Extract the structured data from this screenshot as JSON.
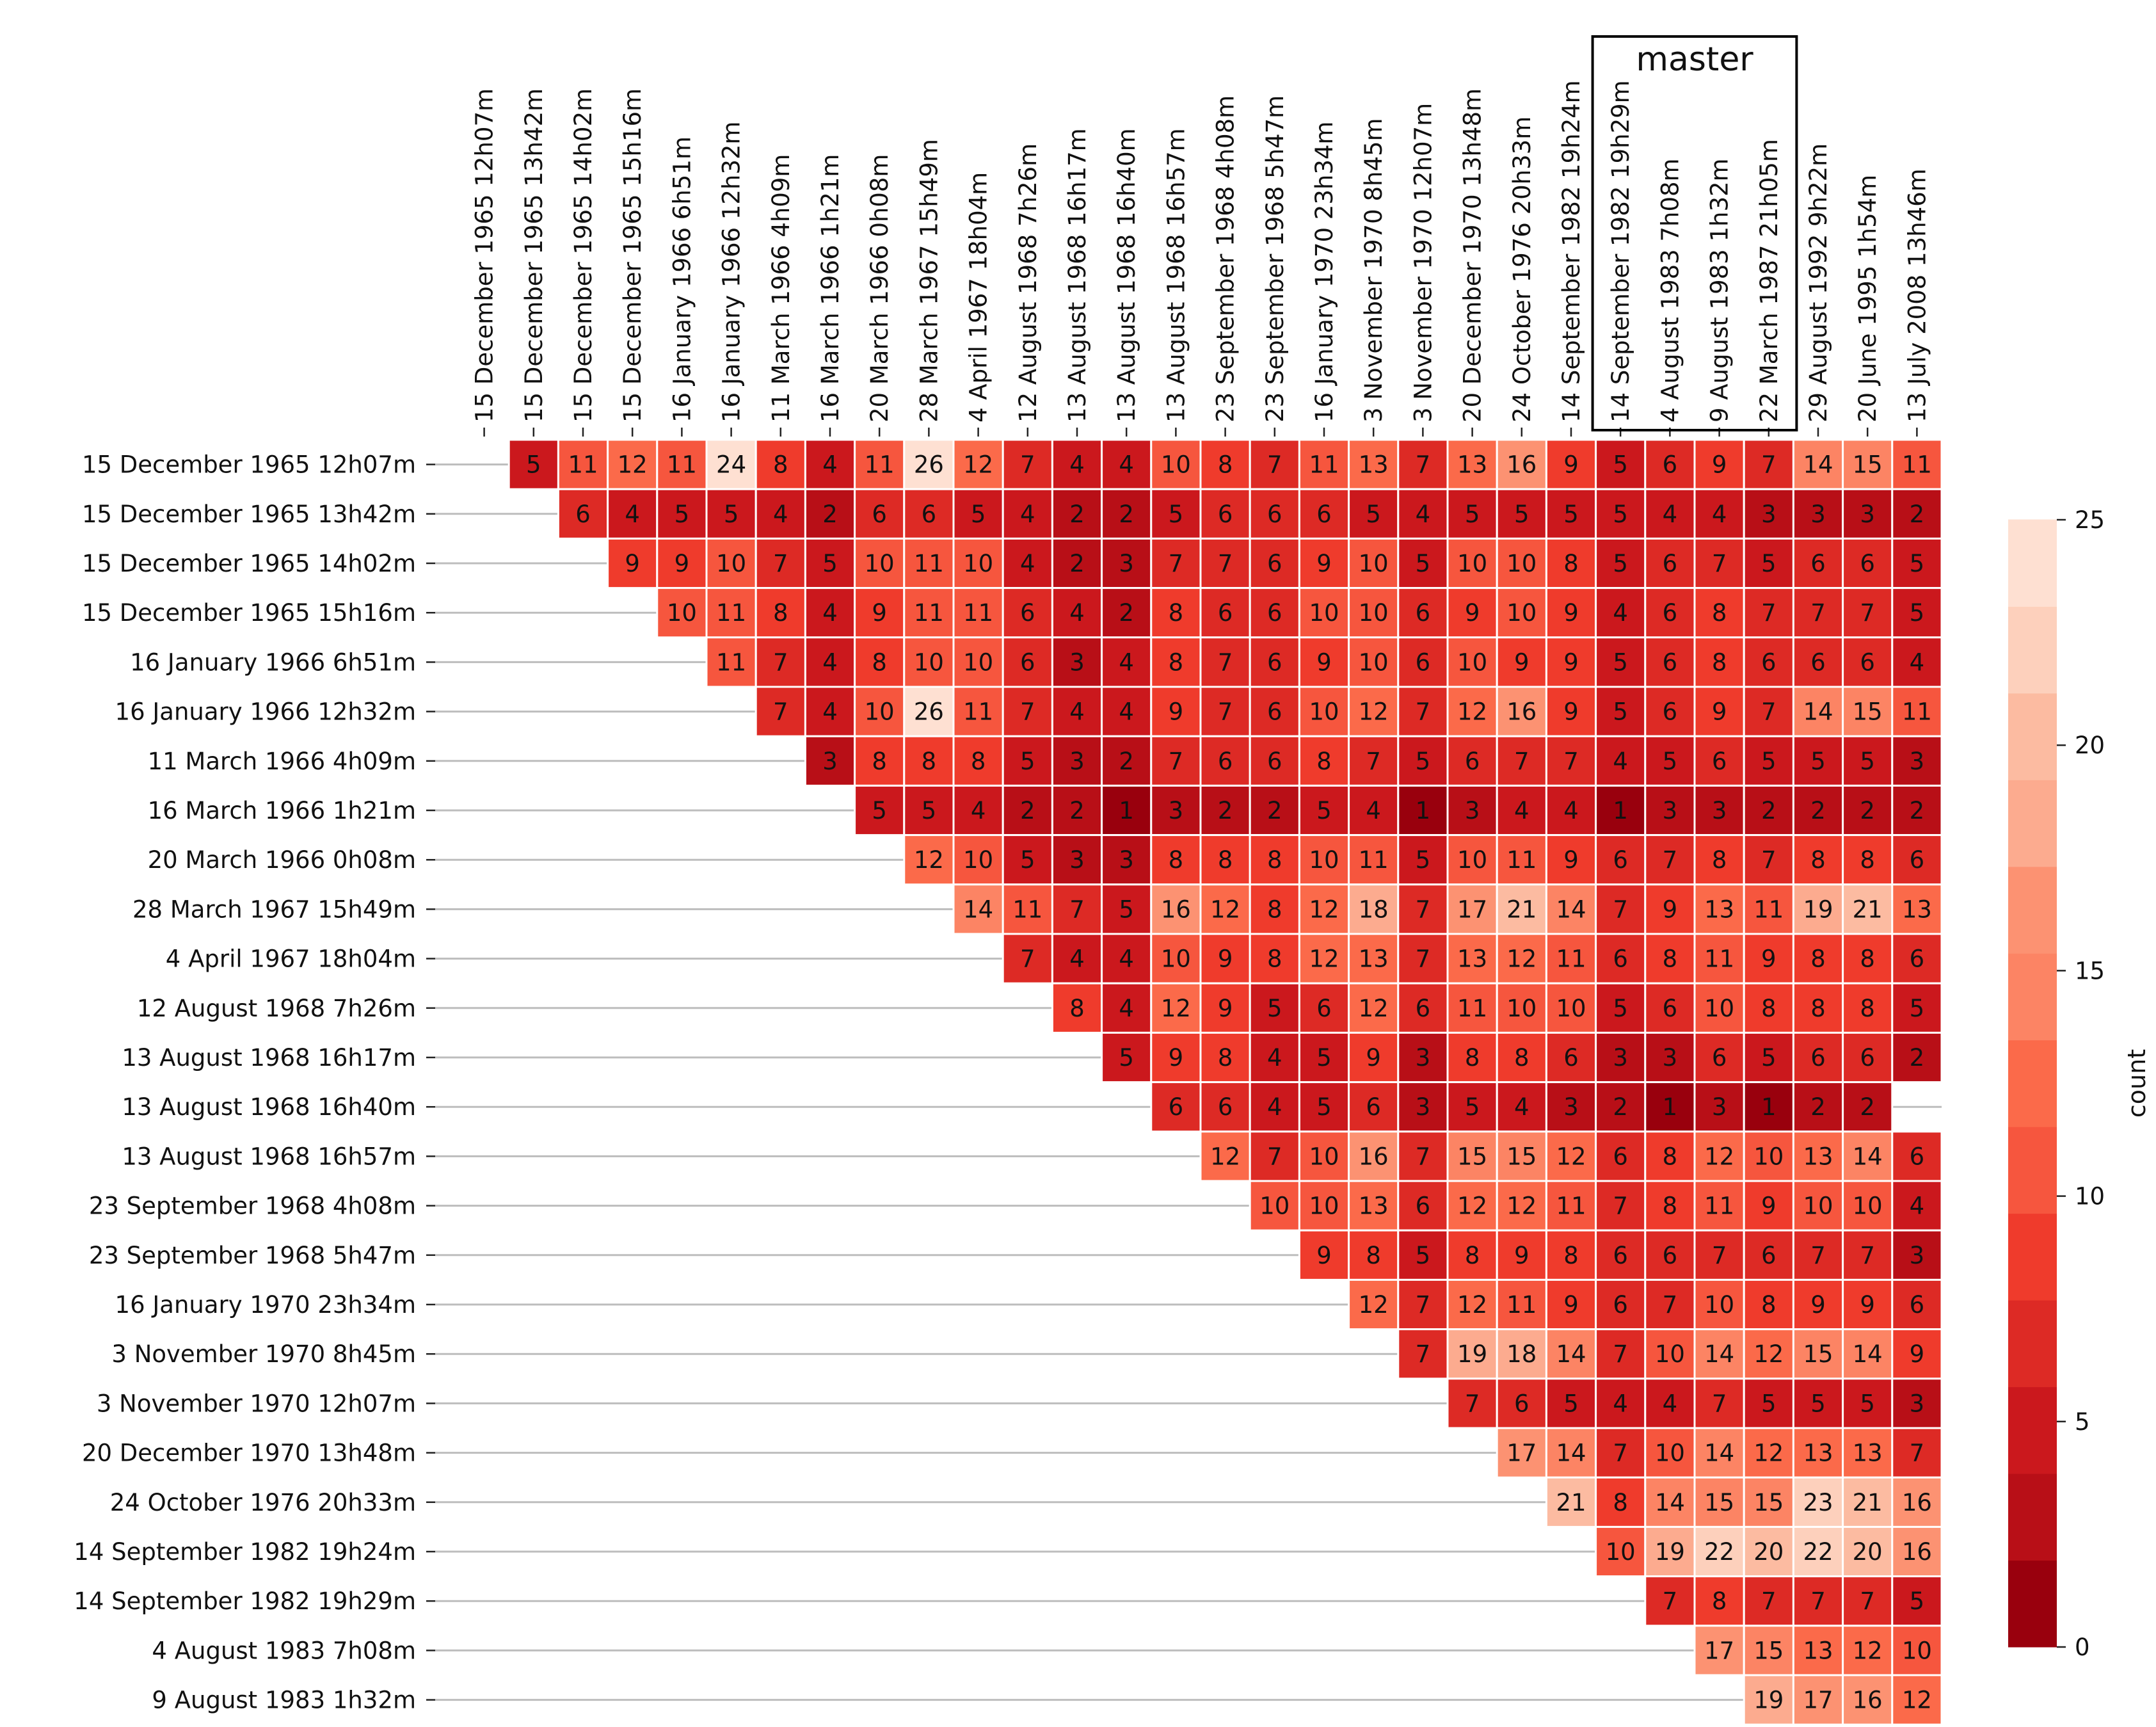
{
  "chart_data": {
    "type": "heatmap",
    "title": "",
    "colorbar_label": "count",
    "colorbar_ticks": [
      0,
      5,
      10,
      15,
      20,
      25
    ],
    "value_range": [
      0,
      25
    ],
    "palette": [
      "#99000d",
      "#b80f17",
      "#cb181d",
      "#dd2a25",
      "#ef3b2c",
      "#f6563e",
      "#fb6a4a",
      "#fc8464",
      "#fc9272",
      "#fcab8f",
      "#fcbba1",
      "#fdd0bc",
      "#fee0d2"
    ],
    "master_label": "master",
    "master_columns": [
      23,
      24,
      25,
      26
    ],
    "columns": [
      "15 December 1965 12h07m",
      "15 December 1965 13h42m",
      "15 December 1965 14h02m",
      "15 December 1965 15h16m",
      "16 January 1966  6h51m",
      "16 January 1966 12h32m",
      "11 March 1966  4h09m",
      "16 March 1966  1h21m",
      "20 March 1966  0h08m",
      "28 March 1967 15h49m",
      "4 April 1967 18h04m",
      "12 August 1968  7h26m",
      "13 August 1968 16h17m",
      "13 August 1968 16h40m",
      "13 August 1968 16h57m",
      "23 September 1968  4h08m",
      "23 September 1968  5h47m",
      "16 January 1970 23h34m",
      "3 November 1970  8h45m",
      "3 November 1970 12h07m",
      "20 December 1970 13h48m",
      "24 October 1976 20h33m",
      "14 September 1982 19h24m",
      "14 September 1982 19h29m",
      "4 August 1983  7h08m",
      "9 August 1983  1h32m",
      "22 March 1987 21h05m",
      "29 August 1992  9h22m",
      "20 June 1995  1h54m",
      "13 July 2008 13h46m"
    ],
    "rows": [
      "15 December 1965 12h07m",
      "15 December 1965 13h42m",
      "15 December 1965 14h02m",
      "15 December 1965 15h16m",
      "16 January 1966  6h51m",
      "16 January 1966 12h32m",
      "11 March 1966  4h09m",
      "16 March 1966  1h21m",
      "20 March 1966  0h08m",
      "28 March 1967 15h49m",
      "4 April 1967 18h04m",
      "12 August 1968  7h26m",
      "13 August 1968 16h17m",
      "13 August 1968 16h40m",
      "13 August 1968 16h57m",
      "23 September 1968  4h08m",
      "23 September 1968  5h47m",
      "16 January 1970 23h34m",
      "3 November 1970  8h45m",
      "3 November 1970 12h07m",
      "20 December 1970 13h48m",
      "24 October 1976 20h33m",
      "14 September 1982 19h24m",
      "14 September 1982 19h29m",
      "4 August 1983  7h08m",
      "9 August 1983  1h32m"
    ],
    "values": [
      [
        null,
        5,
        11,
        12,
        11,
        24,
        8,
        4,
        11,
        26,
        12,
        7,
        4,
        4,
        10,
        8,
        7,
        11,
        13,
        7,
        13,
        16,
        9,
        5,
        6,
        9,
        7,
        14,
        15,
        11
      ],
      [
        null,
        null,
        6,
        4,
        5,
        5,
        4,
        2,
        6,
        6,
        5,
        4,
        2,
        2,
        5,
        6,
        6,
        6,
        5,
        4,
        5,
        5,
        5,
        5,
        4,
        4,
        3,
        3,
        3,
        2
      ],
      [
        null,
        null,
        null,
        9,
        9,
        10,
        7,
        5,
        10,
        11,
        10,
        4,
        2,
        3,
        7,
        7,
        6,
        9,
        10,
        5,
        10,
        10,
        8,
        5,
        6,
        7,
        5,
        6,
        6,
        5
      ],
      [
        null,
        null,
        null,
        null,
        10,
        11,
        8,
        4,
        9,
        11,
        11,
        6,
        4,
        2,
        8,
        6,
        6,
        10,
        10,
        6,
        9,
        10,
        9,
        4,
        6,
        8,
        7,
        7,
        7,
        5
      ],
      [
        null,
        null,
        null,
        null,
        null,
        11,
        7,
        4,
        8,
        10,
        10,
        6,
        3,
        4,
        8,
        7,
        6,
        9,
        10,
        6,
        10,
        9,
        9,
        5,
        6,
        8,
        6,
        6,
        6,
        4
      ],
      [
        null,
        null,
        null,
        null,
        null,
        null,
        7,
        4,
        10,
        26,
        11,
        7,
        4,
        4,
        9,
        7,
        6,
        10,
        12,
        7,
        12,
        16,
        9,
        5,
        6,
        9,
        7,
        14,
        15,
        11
      ],
      [
        null,
        null,
        null,
        null,
        null,
        null,
        null,
        3,
        8,
        8,
        8,
        5,
        3,
        2,
        7,
        6,
        6,
        8,
        7,
        5,
        6,
        7,
        7,
        4,
        5,
        6,
        5,
        5,
        5,
        3
      ],
      [
        null,
        null,
        null,
        null,
        null,
        null,
        null,
        null,
        5,
        5,
        4,
        2,
        2,
        1,
        3,
        2,
        2,
        5,
        4,
        1,
        3,
        4,
        4,
        1,
        3,
        3,
        2,
        2,
        2,
        2
      ],
      [
        null,
        null,
        null,
        null,
        null,
        null,
        null,
        null,
        null,
        12,
        10,
        5,
        3,
        3,
        8,
        8,
        8,
        10,
        11,
        5,
        10,
        11,
        9,
        6,
        7,
        8,
        7,
        8,
        8,
        6
      ],
      [
        null,
        null,
        null,
        null,
        null,
        null,
        null,
        null,
        null,
        null,
        14,
        11,
        7,
        5,
        16,
        12,
        8,
        12,
        18,
        7,
        17,
        21,
        14,
        7,
        9,
        13,
        11,
        19,
        21,
        13
      ],
      [
        null,
        null,
        null,
        null,
        null,
        null,
        null,
        null,
        null,
        null,
        null,
        7,
        4,
        4,
        10,
        9,
        8,
        12,
        13,
        7,
        13,
        12,
        11,
        6,
        8,
        11,
        9,
        8,
        8,
        6
      ],
      [
        null,
        null,
        null,
        null,
        null,
        null,
        null,
        null,
        null,
        null,
        null,
        null,
        8,
        4,
        12,
        9,
        5,
        6,
        12,
        6,
        11,
        10,
        10,
        5,
        6,
        10,
        8,
        8,
        8,
        5
      ],
      [
        null,
        null,
        null,
        null,
        null,
        null,
        null,
        null,
        null,
        null,
        null,
        null,
        null,
        5,
        9,
        8,
        4,
        5,
        9,
        3,
        8,
        8,
        6,
        3,
        3,
        6,
        5,
        6,
        6,
        2
      ],
      [
        null,
        null,
        null,
        null,
        null,
        null,
        null,
        null,
        null,
        null,
        null,
        null,
        null,
        null,
        6,
        6,
        4,
        5,
        6,
        3,
        5,
        4,
        3,
        2,
        1,
        3,
        1,
        2,
        2,
        null
      ],
      [
        null,
        null,
        null,
        null,
        null,
        null,
        null,
        null,
        null,
        null,
        null,
        null,
        null,
        null,
        null,
        12,
        7,
        10,
        16,
        7,
        15,
        15,
        12,
        6,
        8,
        12,
        10,
        13,
        14,
        6
      ],
      [
        null,
        null,
        null,
        null,
        null,
        null,
        null,
        null,
        null,
        null,
        null,
        null,
        null,
        null,
        null,
        null,
        10,
        10,
        13,
        6,
        12,
        12,
        11,
        7,
        8,
        11,
        9,
        10,
        10,
        4
      ],
      [
        null,
        null,
        null,
        null,
        null,
        null,
        null,
        null,
        null,
        null,
        null,
        null,
        null,
        null,
        null,
        null,
        null,
        9,
        8,
        5,
        8,
        9,
        8,
        6,
        6,
        7,
        6,
        7,
        7,
        3
      ],
      [
        null,
        null,
        null,
        null,
        null,
        null,
        null,
        null,
        null,
        null,
        null,
        null,
        null,
        null,
        null,
        null,
        null,
        null,
        12,
        7,
        12,
        11,
        9,
        6,
        7,
        10,
        8,
        9,
        9,
        6
      ],
      [
        null,
        null,
        null,
        null,
        null,
        null,
        null,
        null,
        null,
        null,
        null,
        null,
        null,
        null,
        null,
        null,
        null,
        null,
        null,
        7,
        19,
        18,
        14,
        7,
        10,
        14,
        12,
        15,
        14,
        9
      ],
      [
        null,
        null,
        null,
        null,
        null,
        null,
        null,
        null,
        null,
        null,
        null,
        null,
        null,
        null,
        null,
        null,
        null,
        null,
        null,
        null,
        7,
        6,
        5,
        4,
        4,
        7,
        5,
        5,
        5,
        3
      ],
      [
        null,
        null,
        null,
        null,
        null,
        null,
        null,
        null,
        null,
        null,
        null,
        null,
        null,
        null,
        null,
        null,
        null,
        null,
        null,
        null,
        null,
        17,
        14,
        7,
        10,
        14,
        12,
        13,
        13,
        7
      ],
      [
        null,
        null,
        null,
        null,
        null,
        null,
        null,
        null,
        null,
        null,
        null,
        null,
        null,
        null,
        null,
        null,
        null,
        null,
        null,
        null,
        null,
        null,
        21,
        8,
        14,
        15,
        15,
        23,
        21,
        16
      ],
      [
        null,
        null,
        null,
        null,
        null,
        null,
        null,
        null,
        null,
        null,
        null,
        null,
        null,
        null,
        null,
        null,
        null,
        null,
        null,
        null,
        null,
        null,
        null,
        10,
        19,
        22,
        20,
        22,
        20,
        16
      ],
      [
        null,
        null,
        null,
        null,
        null,
        null,
        null,
        null,
        null,
        null,
        null,
        null,
        null,
        null,
        null,
        null,
        null,
        null,
        null,
        null,
        null,
        null,
        null,
        null,
        7,
        8,
        7,
        7,
        7,
        5
      ],
      [
        null,
        null,
        null,
        null,
        null,
        null,
        null,
        null,
        null,
        null,
        null,
        null,
        null,
        null,
        null,
        null,
        null,
        null,
        null,
        null,
        null,
        null,
        null,
        null,
        null,
        17,
        15,
        13,
        12,
        10
      ],
      [
        null,
        null,
        null,
        null,
        null,
        null,
        null,
        null,
        null,
        null,
        null,
        null,
        null,
        null,
        null,
        null,
        null,
        null,
        null,
        null,
        null,
        null,
        null,
        null,
        null,
        null,
        19,
        17,
        16,
        12
      ]
    ]
  }
}
